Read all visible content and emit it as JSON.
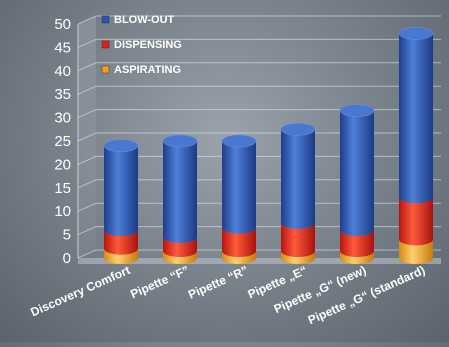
{
  "chart_data": {
    "type": "bar",
    "stacked": true,
    "orientation": "vertical",
    "style": "3d-cylinder",
    "title": "",
    "xlabel": "",
    "ylabel": "",
    "ylim": [
      0,
      50
    ],
    "yticks": [
      "0",
      "5",
      "10",
      "15",
      "20",
      "25",
      "30",
      "35",
      "40",
      "45",
      "50"
    ],
    "grid": true,
    "legend_position": "top-left",
    "categories": [
      "Discovery Comfort",
      "Pipette “F”",
      "Pipette “R”",
      "Pipette „E“",
      "Pipette „G“ (new)",
      "Pipette „G“ (standard)"
    ],
    "series": [
      {
        "name": "ASPIRATING",
        "color": "#f0a020",
        "values": [
          2,
          1.5,
          1.5,
          1.5,
          1.5,
          4
        ]
      },
      {
        "name": "DISPENSING",
        "color": "#e02018",
        "values": [
          4,
          3,
          5,
          6,
          4.5,
          9
        ]
      },
      {
        "name": "BLOW-OUT",
        "color": "#2a55b8",
        "values": [
          18,
          20.5,
          18.5,
          20,
          25.5,
          35
        ]
      }
    ],
    "legend": [
      "BLOW-OUT",
      "DISPENSING",
      "ASPIRATING"
    ]
  }
}
